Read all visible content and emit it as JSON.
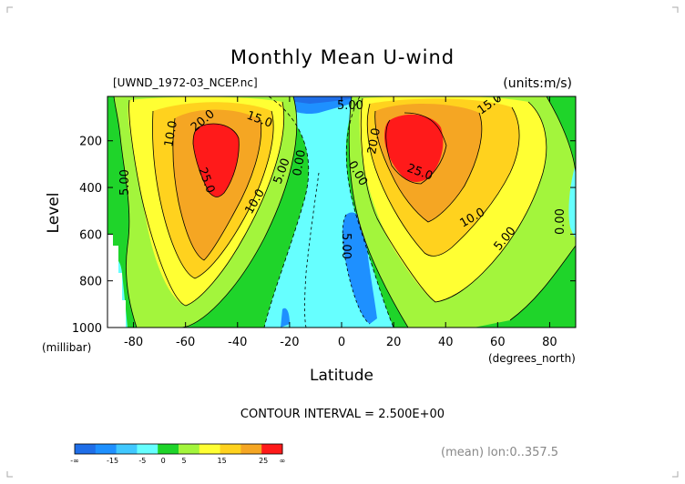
{
  "chart_data": {
    "type": "heatmap",
    "subtype": "filled-contour",
    "title": "Monthly Mean U-wind",
    "file_label": "[UWND_1972-03_NCEP.nc]",
    "units_label": "(units:m/s)",
    "xlabel": "Latitude",
    "x_units": "(degrees_north)",
    "ylabel": "Level",
    "y_units": "(millibar)",
    "xlim": [
      -90,
      90
    ],
    "ylim": [
      1000,
      10
    ],
    "x_ticks": [
      -80,
      -60,
      -40,
      -20,
      0,
      20,
      40,
      60,
      80
    ],
    "y_ticks": [
      200,
      400,
      600,
      800,
      1000
    ],
    "contour_interval_text": "CONTOUR INTERVAL = 2.500E+00",
    "contour_interval": 2.5,
    "footer_note": "(mean) lon:0..357.5",
    "colorbar": {
      "tick_labels": [
        "-∞",
        "-15",
        "-5",
        "0",
        "5",
        "15",
        "25",
        "∞"
      ],
      "bins": [
        {
          "range": "<-15",
          "color": "#1f6ee8"
        },
        {
          "range": "-15..-10",
          "color": "#1e90ff"
        },
        {
          "range": "-10..-5",
          "color": "#40c8ff"
        },
        {
          "range": "-5..0",
          "color": "#66ffff"
        },
        {
          "range": "0..5",
          "color": "#1fd42a"
        },
        {
          "range": "5..10",
          "color": "#a3f53c"
        },
        {
          "range": "10..15",
          "color": "#ffff33"
        },
        {
          "range": "15..20",
          "color": "#ffd21e"
        },
        {
          "range": "20..25",
          "color": "#f5a623"
        },
        {
          "range": ">25",
          "color": "#ff1a1a"
        }
      ]
    },
    "jets": [
      {
        "name": "southern",
        "lat": -48,
        "level": 250,
        "peak_ms": 27
      },
      {
        "name": "northern",
        "lat": 27,
        "level": 200,
        "peak_ms": 29
      }
    ],
    "contour_labels": [
      "5.00",
      "10.0",
      "20.0",
      "15.0",
      "25.0",
      "5.00",
      "10.0",
      "0.00",
      "5.00",
      "20.0",
      "25.0",
      "15.0",
      "10.0",
      "5.00",
      "0.00",
      "0.00",
      "5.00"
    ]
  }
}
